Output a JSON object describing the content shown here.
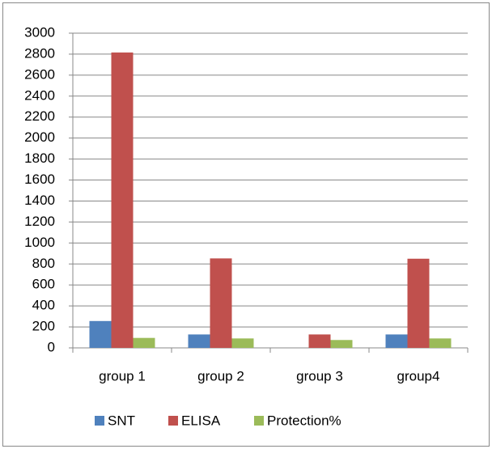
{
  "chart_data": {
    "type": "bar",
    "categories": [
      "group 1",
      "group 2",
      "group 3",
      "group4"
    ],
    "series": [
      {
        "name": "SNT",
        "color": "#4f81bd",
        "values": [
          256,
          128,
          0,
          128
        ]
      },
      {
        "name": "ELISA",
        "color": "#c0504d",
        "values": [
          2816,
          853,
          128,
          850
        ]
      },
      {
        "name": "Protection%",
        "color": "#9bbb59",
        "values": [
          95,
          90,
          75,
          90
        ]
      }
    ],
    "ylim": [
      0,
      3000
    ],
    "yticks": [
      0,
      200,
      400,
      600,
      800,
      1000,
      1200,
      1400,
      1600,
      1800,
      2000,
      2200,
      2400,
      2600,
      2800,
      3000
    ],
    "grid": true,
    "legend": "bottom"
  }
}
